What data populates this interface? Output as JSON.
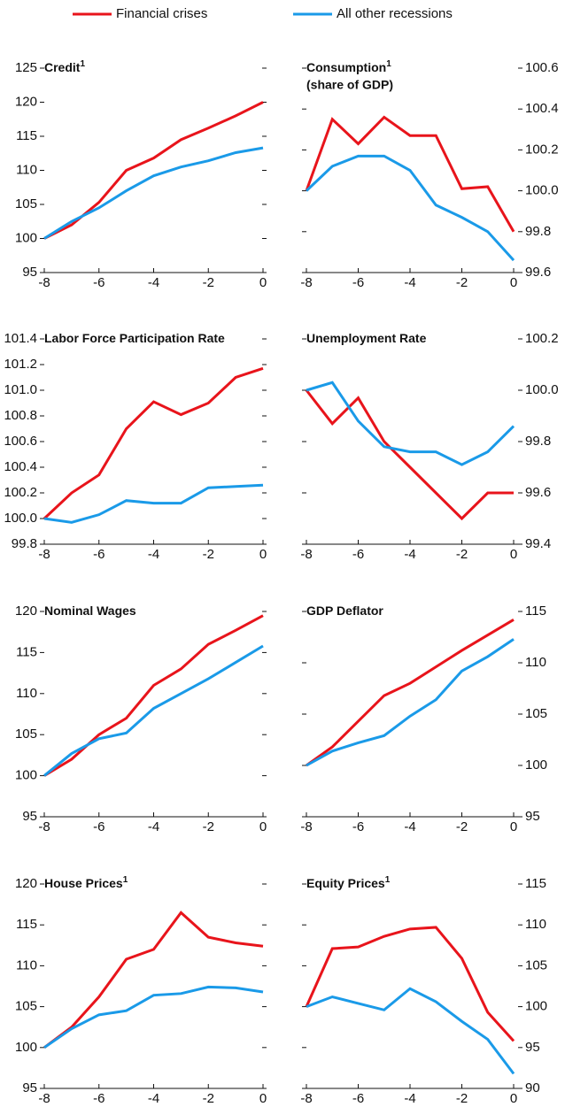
{
  "chart_data": [
    {
      "type": "line",
      "title": "Credit",
      "title_note": "1",
      "x": [
        -8,
        -7,
        -6,
        -5,
        -4,
        -3,
        -2,
        -1,
        0
      ],
      "xlim": [
        -8,
        0
      ],
      "xticks": [
        -8,
        -6,
        -4,
        -2,
        0
      ],
      "ylim": [
        95,
        125
      ],
      "yticks": [
        95,
        100,
        105,
        110,
        115,
        120,
        125
      ],
      "axis_side": "left",
      "series": [
        {
          "name": "Financial crises",
          "color": "#e8141b",
          "values": [
            100,
            102,
            105.3,
            110,
            111.8,
            114.5,
            116.2,
            118,
            120
          ]
        },
        {
          "name": "All other recessions",
          "color": "#1a9ae8",
          "values": [
            100,
            102.5,
            104.5,
            107,
            109.2,
            110.5,
            111.4,
            112.6,
            113.3
          ]
        }
      ]
    },
    {
      "type": "line",
      "title": "Consumption",
      "title_note": "1",
      "subtitle": "(share of GDP)",
      "x": [
        -8,
        -7,
        -6,
        -5,
        -4,
        -3,
        -2,
        -1,
        0
      ],
      "xlim": [
        -8,
        0
      ],
      "xticks": [
        -8,
        -6,
        -4,
        -2,
        0
      ],
      "ylim": [
        99.6,
        100.6
      ],
      "yticks": [
        99.6,
        99.8,
        {
          "value": 100,
          "label": "100.0"
        },
        100.2,
        100.4,
        100.6
      ],
      "axis_side": "right",
      "series": [
        {
          "name": "Financial crises",
          "color": "#e8141b",
          "values": [
            100.0,
            100.35,
            100.23,
            100.36,
            100.27,
            100.27,
            100.01,
            100.02,
            99.8
          ]
        },
        {
          "name": "All other recessions",
          "color": "#1a9ae8",
          "values": [
            100.0,
            100.12,
            100.17,
            100.17,
            100.1,
            99.93,
            99.87,
            99.8,
            99.66
          ]
        }
      ]
    },
    {
      "type": "line",
      "title": "Labor Force Participation Rate",
      "x": [
        -8,
        -7,
        -6,
        -5,
        -4,
        -3,
        -2,
        -1,
        0
      ],
      "xlim": [
        -8,
        0
      ],
      "xticks": [
        -8,
        -6,
        -4,
        -2,
        0
      ],
      "ylim": [
        99.8,
        101.4
      ],
      "yticks": [
        99.8,
        {
          "value": 100,
          "label": "100.0"
        },
        100.2,
        100.4,
        100.6,
        100.8,
        {
          "value": 101,
          "label": "101.0"
        },
        101.2,
        101.4
      ],
      "axis_side": "left",
      "series": [
        {
          "name": "Financial crises",
          "color": "#e8141b",
          "values": [
            100.0,
            100.2,
            100.34,
            100.7,
            100.91,
            100.81,
            100.9,
            101.1,
            101.17
          ]
        },
        {
          "name": "All other recessions",
          "color": "#1a9ae8",
          "values": [
            100.0,
            99.97,
            100.03,
            100.14,
            100.12,
            100.12,
            100.24,
            100.25,
            100.26
          ]
        }
      ]
    },
    {
      "type": "line",
      "title": "Unemployment Rate",
      "x": [
        -8,
        -7,
        -6,
        -5,
        -4,
        -3,
        -2,
        -1,
        0
      ],
      "xlim": [
        -8,
        0
      ],
      "xticks": [
        -8,
        -6,
        -4,
        -2,
        0
      ],
      "ylim": [
        99.4,
        100.2
      ],
      "yticks": [
        99.4,
        99.6,
        99.8,
        {
          "value": 100,
          "label": "100.0"
        },
        100.2
      ],
      "axis_side": "right",
      "series": [
        {
          "name": "Financial crises",
          "color": "#e8141b",
          "values": [
            100.0,
            99.87,
            99.97,
            99.8,
            99.7,
            99.6,
            99.5,
            99.6,
            99.6
          ]
        },
        {
          "name": "All other recessions",
          "color": "#1a9ae8",
          "values": [
            100.0,
            100.03,
            99.88,
            99.78,
            99.76,
            99.76,
            99.71,
            99.76,
            99.86
          ]
        }
      ]
    },
    {
      "type": "line",
      "title": "Nominal Wages",
      "x": [
        -8,
        -7,
        -6,
        -5,
        -4,
        -3,
        -2,
        -1,
        0
      ],
      "xlim": [
        -8,
        0
      ],
      "xticks": [
        -8,
        -6,
        -4,
        -2,
        0
      ],
      "ylim": [
        95,
        120
      ],
      "yticks": [
        95,
        100,
        105,
        110,
        115,
        120
      ],
      "axis_side": "left",
      "series": [
        {
          "name": "Financial crises",
          "color": "#e8141b",
          "values": [
            100,
            102,
            105,
            107,
            111,
            113,
            116,
            117.7,
            119.5
          ]
        },
        {
          "name": "All other recessions",
          "color": "#1a9ae8",
          "values": [
            100,
            102.7,
            104.5,
            105.2,
            108.2,
            110,
            111.8,
            113.8,
            115.8
          ]
        }
      ]
    },
    {
      "type": "line",
      "title": "GDP Deflator",
      "x": [
        -8,
        -7,
        -6,
        -5,
        -4,
        -3,
        -2,
        -1,
        0
      ],
      "xlim": [
        -8,
        0
      ],
      "xticks": [
        -8,
        -6,
        -4,
        -2,
        0
      ],
      "ylim": [
        95,
        115
      ],
      "yticks": [
        95,
        100,
        105,
        110,
        115
      ],
      "axis_side": "right",
      "series": [
        {
          "name": "Financial crises",
          "color": "#e8141b",
          "values": [
            100,
            101.8,
            104.3,
            106.8,
            108,
            109.6,
            111.2,
            112.7,
            114.2
          ]
        },
        {
          "name": "All other recessions",
          "color": "#1a9ae8",
          "values": [
            100,
            101.4,
            102.2,
            102.9,
            104.8,
            106.4,
            109.2,
            110.6,
            112.3
          ]
        }
      ]
    },
    {
      "type": "line",
      "title": "House Prices",
      "title_note": "1",
      "x": [
        -8,
        -7,
        -6,
        -5,
        -4,
        -3,
        -2,
        -1,
        0
      ],
      "xlim": [
        -8,
        0
      ],
      "xticks": [
        -8,
        -6,
        -4,
        -2,
        0
      ],
      "ylim": [
        95,
        120
      ],
      "yticks": [
        95,
        100,
        105,
        110,
        115,
        120
      ],
      "axis_side": "left",
      "series": [
        {
          "name": "Financial crises",
          "color": "#e8141b",
          "values": [
            100,
            102.5,
            106.2,
            110.8,
            112,
            116.5,
            113.5,
            112.8,
            112.4
          ]
        },
        {
          "name": "All other recessions",
          "color": "#1a9ae8",
          "values": [
            100,
            102.3,
            104,
            104.5,
            106.4,
            106.6,
            107.4,
            107.3,
            106.8
          ]
        }
      ]
    },
    {
      "type": "line",
      "title": "Equity Prices",
      "title_note": "1",
      "x": [
        -8,
        -7,
        -6,
        -5,
        -4,
        -3,
        -2,
        -1,
        0
      ],
      "xlim": [
        -8,
        0
      ],
      "xticks": [
        -8,
        -6,
        -4,
        -2,
        0
      ],
      "ylim": [
        90,
        115
      ],
      "yticks": [
        90,
        95,
        100,
        105,
        110,
        115
      ],
      "axis_side": "right",
      "series": [
        {
          "name": "Financial crises",
          "color": "#e8141b",
          "values": [
            100,
            107.1,
            107.3,
            108.6,
            109.5,
            109.7,
            105.9,
            99.3,
            95.8
          ]
        },
        {
          "name": "All other recessions",
          "color": "#1a9ae8",
          "values": [
            100,
            101.2,
            100.4,
            99.6,
            102.2,
            100.6,
            98.2,
            96,
            91.8
          ]
        }
      ]
    }
  ]
}
